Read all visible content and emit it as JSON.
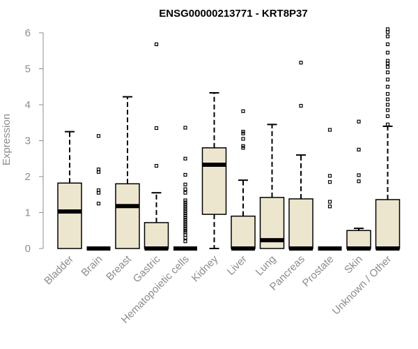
{
  "chart_data": {
    "type": "boxplot",
    "title": "ENSG00000213771 - KRT8P37",
    "ylabel": "Expression",
    "xlabel": "",
    "ylim": [
      0,
      6.2
    ],
    "yticks": [
      0,
      1,
      2,
      3,
      4,
      5,
      6
    ],
    "box_color": "#ede6cf",
    "categories": [
      "Bladder",
      "Brain",
      "Breast",
      "Gastric",
      "Hematopoietic cells",
      "Kidney",
      "Liver",
      "Lung",
      "Pancreas",
      "Prostate",
      "Skin",
      "Unknown / Other"
    ],
    "boxes": [
      {
        "name": "Bladder",
        "whisker_low": 0,
        "q1": 0,
        "median": 1.03,
        "q3": 1.82,
        "whisker_high": 3.25,
        "outliers": []
      },
      {
        "name": "Brain",
        "whisker_low": 0,
        "q1": 0,
        "median": 0,
        "q3": 0,
        "whisker_high": 0,
        "outliers": [
          1.25,
          1.55,
          1.62,
          2.13,
          2.2,
          3.13
        ]
      },
      {
        "name": "Breast",
        "whisker_low": 0,
        "q1": 0,
        "median": 1.18,
        "q3": 1.8,
        "whisker_high": 4.22,
        "outliers": []
      },
      {
        "name": "Gastric",
        "whisker_low": 0,
        "q1": 0,
        "median": 0,
        "q3": 0.72,
        "whisker_high": 1.55,
        "outliers": [
          2.3,
          3.35,
          5.68
        ]
      },
      {
        "name": "Hematopoietic cells",
        "whisker_low": 0,
        "q1": 0,
        "median": 0,
        "q3": 0,
        "whisker_high": 0,
        "outliers": [
          0.2,
          0.3,
          0.38,
          0.45,
          0.5,
          0.56,
          0.62,
          0.68,
          0.74,
          0.8,
          0.86,
          0.92,
          0.98,
          1.04,
          1.1,
          1.16,
          1.22,
          1.28,
          1.34,
          1.55,
          1.65,
          1.78,
          2.05,
          2.5,
          3.36
        ]
      },
      {
        "name": "Kidney",
        "whisker_low": 0,
        "q1": 0.95,
        "median": 2.33,
        "q3": 2.8,
        "whisker_high": 4.33,
        "outliers": []
      },
      {
        "name": "Liver",
        "whisker_low": 0,
        "q1": 0,
        "median": 0,
        "q3": 0.9,
        "whisker_high": 1.9,
        "outliers": [
          2.8,
          2.85,
          3.05,
          3.2,
          3.25,
          3.82
        ]
      },
      {
        "name": "Lung",
        "whisker_low": 0,
        "q1": 0,
        "median": 0.23,
        "q3": 1.42,
        "whisker_high": 3.45,
        "outliers": []
      },
      {
        "name": "Pancreas",
        "whisker_low": 0,
        "q1": 0,
        "median": 0,
        "q3": 1.38,
        "whisker_high": 2.6,
        "outliers": [
          3.97,
          5.17
        ]
      },
      {
        "name": "Prostate",
        "whisker_low": 0,
        "q1": 0,
        "median": 0,
        "q3": 0,
        "whisker_high": 0,
        "outliers": [
          1.17,
          1.3,
          1.85,
          2.02,
          3.3
        ]
      },
      {
        "name": "Skin",
        "whisker_low": 0,
        "q1": 0,
        "median": 0,
        "q3": 0.5,
        "whisker_high": 0.56,
        "outliers": [
          1.87,
          2.04,
          2.75,
          3.53
        ]
      },
      {
        "name": "Unknown / Other",
        "whisker_low": 0,
        "q1": 0,
        "median": 0,
        "q3": 1.36,
        "whisker_high": 3.4,
        "outliers": [
          3.45,
          3.68,
          3.85,
          4.0,
          4.15,
          4.3,
          4.5,
          4.7,
          4.9,
          5.05,
          5.15,
          5.22,
          5.45,
          5.68,
          5.9,
          6.02,
          6.1
        ]
      }
    ]
  }
}
